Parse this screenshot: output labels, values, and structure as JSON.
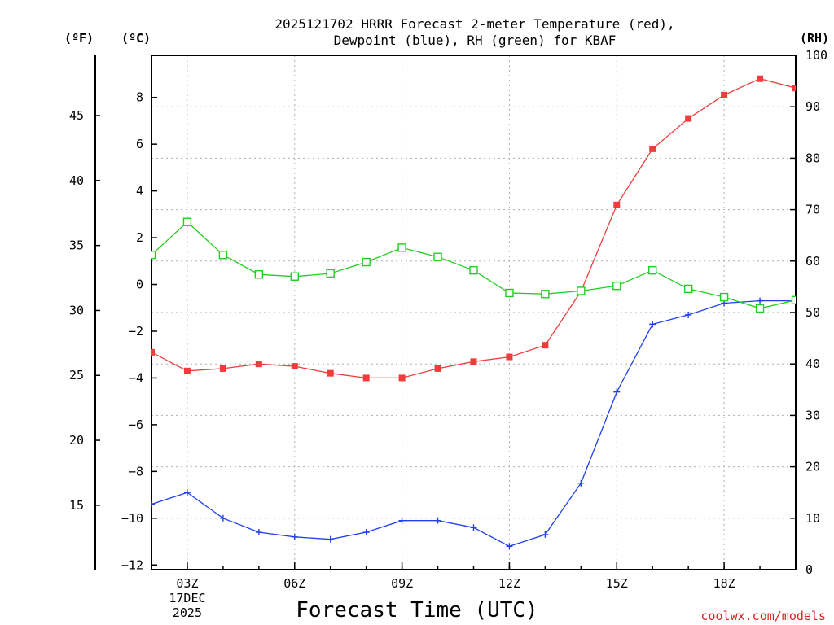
{
  "chart_data": {
    "type": "line",
    "title_lines": [
      "2025121702 HRRR Forecast 2-meter Temperature (red),",
      "Dewpoint (blue), RH (green) for KBAF"
    ],
    "unit_labels": {
      "fahrenheit": "(ºF)",
      "celsius": "(ºC)",
      "rh": "(RH)"
    },
    "xlabel": "Forecast Time (UTC)",
    "credit": "coolwx.com/models",
    "x_hours": [
      2,
      3,
      4,
      5,
      6,
      7,
      8,
      9,
      10,
      11,
      12,
      13,
      14,
      15,
      16,
      17,
      18,
      19,
      20
    ],
    "xlim": [
      2,
      20
    ],
    "x_ticks": [
      {
        "hour": 3,
        "lines": [
          "03Z",
          "17DEC",
          "2025"
        ]
      },
      {
        "hour": 6,
        "lines": [
          "06Z"
        ]
      },
      {
        "hour": 9,
        "lines": [
          "09Z"
        ]
      },
      {
        "hour": 12,
        "lines": [
          "12Z"
        ]
      },
      {
        "hour": 15,
        "lines": [
          "15Z"
        ]
      },
      {
        "hour": 18,
        "lines": [
          "18Z"
        ]
      }
    ],
    "y_celsius": {
      "lim": [
        -12.2,
        9.8
      ],
      "ticks": [
        "8",
        "6",
        "4",
        "2",
        "0",
        "−2",
        "−4",
        "−6",
        "−8",
        "−10",
        "−12"
      ],
      "values": [
        8,
        6,
        4,
        2,
        0,
        -2,
        -4,
        -6,
        -8,
        -10,
        -12
      ]
    },
    "y_fahrenheit": {
      "ticks": [
        "45",
        "40",
        "35",
        "30",
        "25",
        "20",
        "15"
      ],
      "values": [
        45,
        40,
        35,
        30,
        25,
        20,
        15
      ]
    },
    "y_rh": {
      "lim": [
        0,
        100
      ],
      "ticks": [
        "100",
        "90",
        "80",
        "70",
        "60",
        "50",
        "40",
        "30",
        "20",
        "10",
        "0"
      ],
      "values": [
        100,
        90,
        80,
        70,
        60,
        50,
        40,
        30,
        20,
        10,
        0
      ]
    },
    "series": [
      {
        "name": "Temperature",
        "unit": "C",
        "color": "#f03c3c",
        "marker": "filled-square",
        "values": [
          -2.9,
          -3.7,
          -3.6,
          -3.4,
          -3.5,
          -3.8,
          -4.0,
          -4.0,
          -3.6,
          -3.3,
          -3.1,
          -2.6,
          -0.3,
          3.4,
          5.8,
          7.1,
          8.1,
          8.8,
          8.4
        ]
      },
      {
        "name": "Dewpoint",
        "unit": "C",
        "color": "#2040f0",
        "marker": "plus",
        "values": [
          -9.4,
          -8.9,
          -10.0,
          -10.6,
          -10.8,
          -10.9,
          -10.6,
          -10.1,
          -10.1,
          -10.4,
          -11.2,
          -10.7,
          -8.5,
          -4.6,
          -1.7,
          -1.3,
          -0.8,
          -0.7,
          -0.7
        ]
      },
      {
        "name": "Relative Humidity",
        "unit": "%",
        "color": "#20d020",
        "marker": "open-square",
        "values": [
          61.2,
          67.6,
          61.2,
          57.4,
          57.0,
          57.6,
          59.8,
          62.6,
          60.8,
          58.2,
          53.8,
          53.6,
          54.2,
          55.2,
          58.2,
          54.6,
          53.0,
          50.8,
          52.4
        ]
      }
    ]
  }
}
